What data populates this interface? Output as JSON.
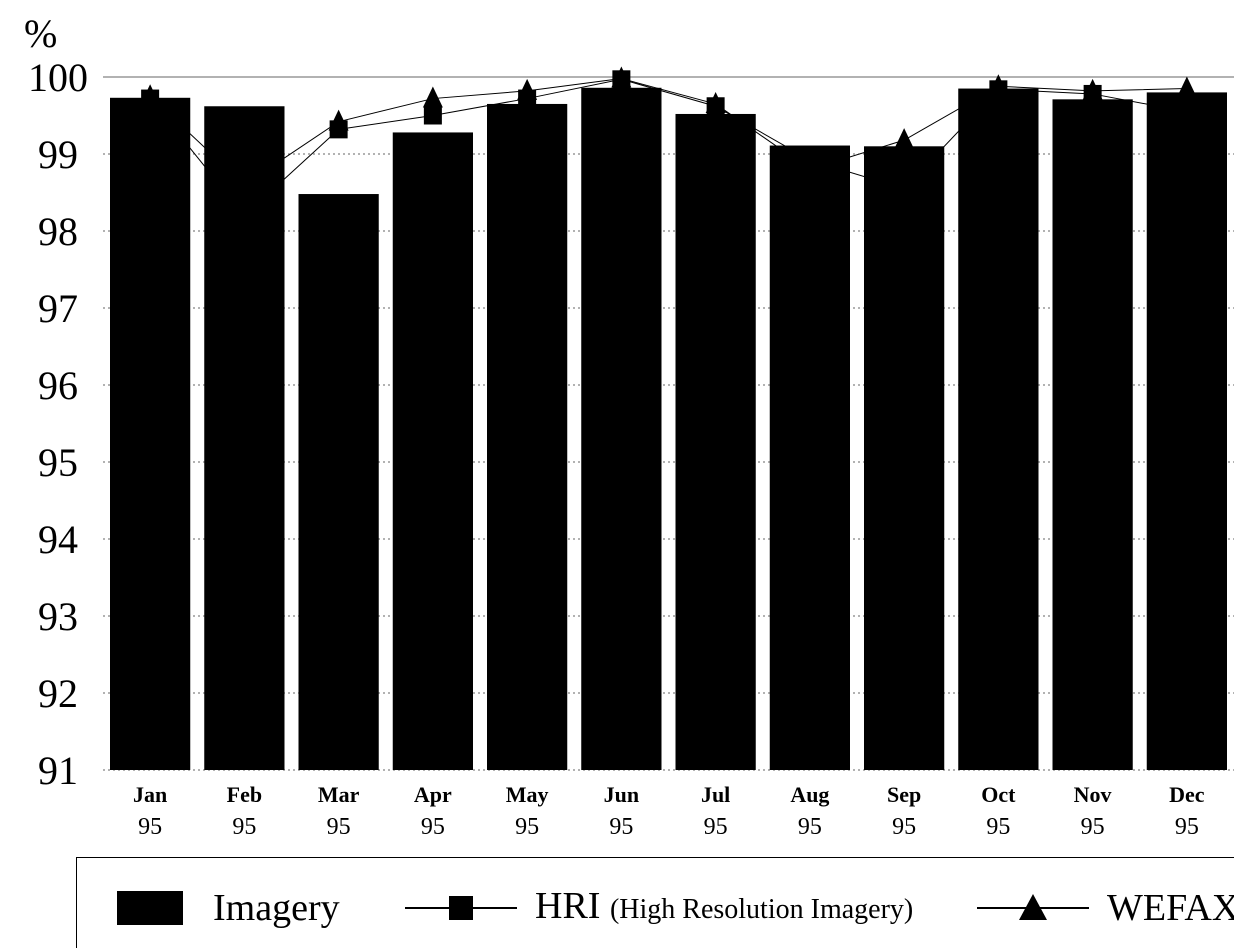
{
  "chart_data": {
    "type": "bar",
    "ylabel": "%",
    "ylim": [
      91,
      100
    ],
    "yticks": [
      "91",
      "92",
      "93",
      "94",
      "95",
      "96",
      "97",
      "98",
      "99",
      "100"
    ],
    "grid": true,
    "categories": [
      {
        "month": "Jan",
        "year": "95"
      },
      {
        "month": "Feb",
        "year": "95"
      },
      {
        "month": "Mar",
        "year": "95"
      },
      {
        "month": "Apr",
        "year": "95"
      },
      {
        "month": "May",
        "year": "95"
      },
      {
        "month": "Jun",
        "year": "95"
      },
      {
        "month": "Jul",
        "year": "95"
      },
      {
        "month": "Aug",
        "year": "95"
      },
      {
        "month": "Sep",
        "year": "95"
      },
      {
        "month": "Oct",
        "year": "95"
      },
      {
        "month": "Nov",
        "year": "95"
      },
      {
        "month": "Dec",
        "year": "95"
      }
    ],
    "series": [
      {
        "name": "Imagery",
        "kind": "bar",
        "color": "#000000",
        "values": [
          99.73,
          99.62,
          98.48,
          99.28,
          99.65,
          99.86,
          99.52,
          99.11,
          99.1,
          99.85,
          99.71,
          99.8
        ]
      },
      {
        "name": "HRI",
        "kind": "line",
        "marker": "square",
        "color": "#000000",
        "values": [
          99.72,
          98.2,
          99.32,
          99.5,
          99.72,
          99.97,
          99.62,
          98.92,
          98.55,
          99.84,
          99.78,
          99.55
        ]
      },
      {
        "name": "WEFAX",
        "kind": "line",
        "marker": "triangle",
        "color": "#000000",
        "values": [
          99.75,
          98.6,
          99.42,
          99.72,
          99.82,
          99.98,
          99.65,
          98.8,
          99.18,
          99.88,
          99.82,
          99.85
        ]
      }
    ],
    "legend": {
      "position": "bottom",
      "imagery": "Imagery",
      "hri": "HRI",
      "hri_note": "(High Resolution Imagery)",
      "wefax": "WEFAX"
    }
  }
}
